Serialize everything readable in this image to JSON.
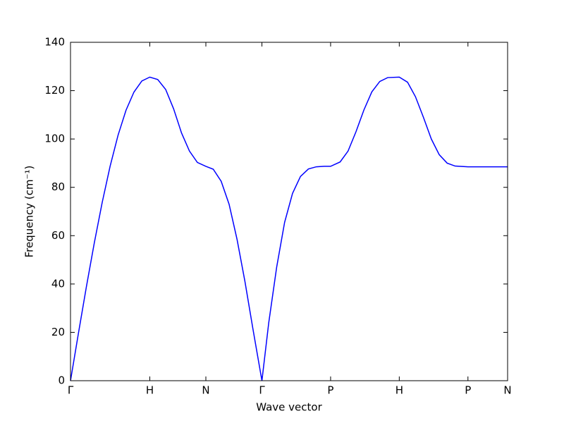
{
  "chart_data": {
    "type": "line",
    "xlabel": "Wave vector",
    "ylabel": "Frequency (cm⁻¹)",
    "x": [
      0,
      0.1,
      0.2,
      0.3,
      0.4,
      0.5,
      0.6,
      0.7,
      0.8,
      0.9,
      1.0,
      1.1,
      1.2,
      1.3,
      1.4,
      1.5,
      1.6,
      1.707,
      1.8,
      1.9,
      2.0,
      2.1,
      2.2,
      2.3,
      2.414,
      2.5,
      2.6,
      2.7,
      2.8,
      2.9,
      3.0,
      3.1,
      3.2,
      3.28,
      3.4,
      3.5,
      3.6,
      3.7,
      3.8,
      3.9,
      4.0,
      4.146,
      4.25,
      4.35,
      4.45,
      4.55,
      4.65,
      4.75,
      4.85,
      5.012,
      5.2,
      5.512
    ],
    "series": [
      {
        "color": "#0000ff",
        "values": [
          0,
          19.6,
          38.8,
          57.0,
          73.8,
          88.8,
          101.6,
          111.9,
          119.4,
          124.0,
          125.6,
          124.6,
          120.5,
          112.5,
          102.5,
          95.0,
          90.3,
          88.7,
          87.5,
          82.5,
          73.0,
          58.5,
          41.0,
          21.5,
          0,
          24.0,
          47.0,
          65.5,
          77.5,
          84.5,
          87.6,
          88.5,
          88.7,
          88.7,
          90.5,
          95.0,
          103.0,
          112.0,
          119.5,
          123.8,
          125.4,
          125.6,
          123.5,
          117.5,
          109.0,
          100.0,
          93.5,
          90.0,
          88.8,
          88.5,
          88.5,
          88.5
        ]
      }
    ],
    "xlim": [
      0,
      5.512
    ],
    "xticks": [
      {
        "value": 0,
        "label": "Γ"
      },
      {
        "value": 1.0,
        "label": "H"
      },
      {
        "value": 1.707,
        "label": "N"
      },
      {
        "value": 2.414,
        "label": "Γ"
      },
      {
        "value": 3.28,
        "label": "P"
      },
      {
        "value": 4.146,
        "label": "H"
      },
      {
        "value": 5.012,
        "label": "P"
      },
      {
        "value": 5.512,
        "label": "N"
      }
    ],
    "ylim": [
      0,
      140
    ],
    "yticks": [
      0,
      20,
      40,
      60,
      80,
      100,
      120,
      140
    ]
  }
}
